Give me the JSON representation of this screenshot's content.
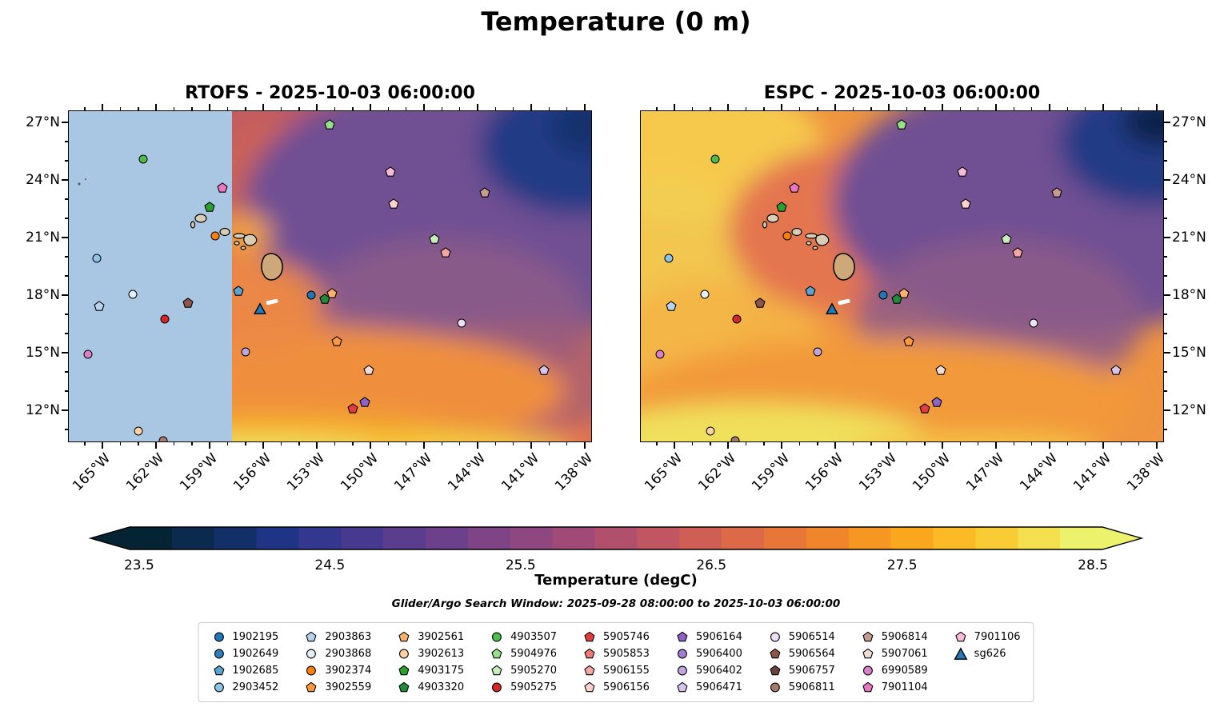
{
  "title": "Temperature (0 m)",
  "panels": [
    {
      "key": "rtofs",
      "title": "RTOFS - 2025-10-03 06:00:00"
    },
    {
      "key": "espc",
      "title": "ESPC - 2025-10-03 06:00:00"
    }
  ],
  "axes": {
    "lon_min": -166.93,
    "lon_max": -137.6,
    "lat_min": 10.33,
    "lat_max": 27.63,
    "lon_ticks": [
      -165,
      -162,
      -159,
      -156,
      -153,
      -150,
      -147,
      -144,
      -141,
      -138
    ],
    "lon_tick_labels": [
      "165°W",
      "162°W",
      "159°W",
      "156°W",
      "153°W",
      "150°W",
      "147°W",
      "144°W",
      "141°W",
      "138°W"
    ],
    "lat_ticks": [
      27,
      24,
      21,
      18,
      15,
      12
    ],
    "lat_tick_labels": [
      "27°N",
      "24°N",
      "21°N",
      "18°N",
      "15°N",
      "12°N"
    ]
  },
  "colorbar": {
    "label": "Temperature (degC)",
    "vmin": 23.45,
    "vmax": 28.55,
    "tick_values": [
      23.5,
      24.5,
      25.5,
      26.5,
      27.5,
      28.5
    ],
    "tick_labels": [
      "23.5",
      "24.5",
      "25.5",
      "26.5",
      "27.5",
      "28.5"
    ],
    "stops": [
      "#042333",
      "#0b2a4e",
      "#122f68",
      "#1f3484",
      "#33378e",
      "#47398e",
      "#5a3d8d",
      "#6c408a",
      "#7e4486",
      "#8f477f",
      "#a04b77",
      "#b1506d",
      "#c05662",
      "#cf5e55",
      "#dc6948",
      "#e77639",
      "#ef862c",
      "#f59722",
      "#f9a81e",
      "#fbba26",
      "#f9cc35",
      "#f4df4e",
      "#edf26d"
    ]
  },
  "search_window": "Glider/Argo Search Window: 2025-09-28 08:00:00 to 2025-10-03 06:00:00",
  "legend": {
    "items": [
      {
        "id": "1902195",
        "shape": "circle",
        "color": "#1f77b4"
      },
      {
        "id": "1902649",
        "shape": "circle",
        "color": "#2d7fbe"
      },
      {
        "id": "1902685",
        "shape": "pentagon",
        "color": "#5ba3d0"
      },
      {
        "id": "2903452",
        "shape": "circle",
        "color": "#8ec4e8"
      },
      {
        "id": "2903863",
        "shape": "pentagon",
        "color": "#b8d4ea"
      },
      {
        "id": "2903868",
        "shape": "circle",
        "color": "#e4eef7"
      },
      {
        "id": "3902374",
        "shape": "circle",
        "color": "#ff7f0e"
      },
      {
        "id": "3902559",
        "shape": "pentagon",
        "color": "#fb9a3c"
      },
      {
        "id": "3902561",
        "shape": "pentagon",
        "color": "#fcb26b"
      },
      {
        "id": "3902613",
        "shape": "circle",
        "color": "#fdd3a5"
      },
      {
        "id": "4903175",
        "shape": "pentagon",
        "color": "#2ca02c"
      },
      {
        "id": "4903320",
        "shape": "pentagon",
        "color": "#1f8b3b"
      },
      {
        "id": "4903507",
        "shape": "circle",
        "color": "#4dbd4d"
      },
      {
        "id": "5904976",
        "shape": "pentagon",
        "color": "#98df8a"
      },
      {
        "id": "5905270",
        "shape": "pentagon",
        "color": "#c9ecbf"
      },
      {
        "id": "5905275",
        "shape": "circle",
        "color": "#d62728"
      },
      {
        "id": "5905746",
        "shape": "pentagon",
        "color": "#e23d3e"
      },
      {
        "id": "5905853",
        "shape": "pentagon",
        "color": "#ef7a7a"
      },
      {
        "id": "5906155",
        "shape": "pentagon",
        "color": "#f4a6a3"
      },
      {
        "id": "5906156",
        "shape": "pentagon",
        "color": "#fad1cd"
      },
      {
        "id": "5906164",
        "shape": "pentagon",
        "color": "#8e63c9"
      },
      {
        "id": "5906400",
        "shape": "circle",
        "color": "#a07fd1"
      },
      {
        "id": "5906402",
        "shape": "circle",
        "color": "#c0a6dd"
      },
      {
        "id": "5906471",
        "shape": "pentagon",
        "color": "#d7c4ec"
      },
      {
        "id": "5906514",
        "shape": "circle",
        "color": "#ece2f6"
      },
      {
        "id": "5906564",
        "shape": "pentagon",
        "color": "#8c564b"
      },
      {
        "id": "5906757",
        "shape": "pentagon",
        "color": "#67433a"
      },
      {
        "id": "5906811",
        "shape": "circle",
        "color": "#a5796c"
      },
      {
        "id": "5906814",
        "shape": "pentagon",
        "color": "#c69c8e"
      },
      {
        "id": "5907061",
        "shape": "pentagon",
        "color": "#f0dcd4"
      },
      {
        "id": "6990589",
        "shape": "circle",
        "color": "#de7fcb"
      },
      {
        "id": "7901104",
        "shape": "pentagon",
        "color": "#ec77c0"
      },
      {
        "id": "7901106",
        "shape": "pentagon",
        "color": "#f6bcd9"
      },
      {
        "id": "sg626",
        "shape": "triangle",
        "color": "#2479b7"
      }
    ]
  },
  "chart_data": {
    "type": "heatmap",
    "title": "Temperature (0 m)",
    "subtitle": "Glider/Argo Search Window: 2025-09-28 08:00:00 to 2025-10-03 06:00:00",
    "panel_titles": [
      "RTOFS - 2025-10-03 06:00:00",
      "ESPC - 2025-10-03 06:00:00"
    ],
    "variable": "Temperature (degC)",
    "temperature_range_degC": [
      23.5,
      28.5
    ],
    "lon_range_degW": [
      167,
      137.5
    ],
    "lat_range_degN": [
      10.3,
      27.6
    ],
    "rtofs_no_data_region": {
      "lon_max": -157.75,
      "color": "#a9c6e3"
    },
    "glider_dash": {
      "lon": -155.65,
      "lat": 17.45
    },
    "floats": [
      {
        "id": "1902195",
        "lon": -153.3,
        "lat": 18.0
      },
      {
        "id": "1902685",
        "lon": -157.4,
        "lat": 18.2
      },
      {
        "id": "2903452",
        "lon": -165.3,
        "lat": 19.9
      },
      {
        "id": "2903863",
        "lon": -165.2,
        "lat": 17.4
      },
      {
        "id": "2903868",
        "lon": -163.3,
        "lat": 18.05
      },
      {
        "id": "3902374",
        "lon": -158.7,
        "lat": 21.1
      },
      {
        "id": "3902559",
        "lon": -151.9,
        "lat": 15.6
      },
      {
        "id": "3902561",
        "lon": -152.15,
        "lat": 18.1
      },
      {
        "id": "3902613",
        "lon": -163.0,
        "lat": 10.9
      },
      {
        "id": "4903175",
        "lon": -159.0,
        "lat": 22.6
      },
      {
        "id": "4903320",
        "lon": -152.55,
        "lat": 17.8
      },
      {
        "id": "4903507",
        "lon": -162.7,
        "lat": 25.1
      },
      {
        "id": "5904976",
        "lon": -152.3,
        "lat": 26.9
      },
      {
        "id": "5905270",
        "lon": -146.4,
        "lat": 20.9
      },
      {
        "id": "5905275",
        "lon": -161.5,
        "lat": 16.75
      },
      {
        "id": "5905746",
        "lon": -151.0,
        "lat": 12.1
      },
      {
        "id": "5906155",
        "lon": -145.8,
        "lat": 20.2
      },
      {
        "id": "5906156",
        "lon": -148.7,
        "lat": 22.75
      },
      {
        "id": "5906164",
        "lon": -150.3,
        "lat": 12.4
      },
      {
        "id": "5906402",
        "lon": -157.0,
        "lat": 15.05
      },
      {
        "id": "5906471",
        "lon": -140.3,
        "lat": 14.1
      },
      {
        "id": "5906514",
        "lon": -144.9,
        "lat": 16.55
      },
      {
        "id": "5906564",
        "lon": -160.2,
        "lat": 17.6
      },
      {
        "id": "5906811",
        "lon": -161.6,
        "lat": 10.4
      },
      {
        "id": "5906814",
        "lon": -143.6,
        "lat": 23.35
      },
      {
        "id": "5907061",
        "lon": -150.1,
        "lat": 14.1
      },
      {
        "id": "6990589",
        "lon": -165.8,
        "lat": 14.9
      },
      {
        "id": "7901104",
        "lon": -158.3,
        "lat": 23.6
      },
      {
        "id": "7901106",
        "lon": -148.9,
        "lat": 24.4
      },
      {
        "id": "sg626",
        "lon": -156.2,
        "lat": 17.3
      }
    ]
  }
}
